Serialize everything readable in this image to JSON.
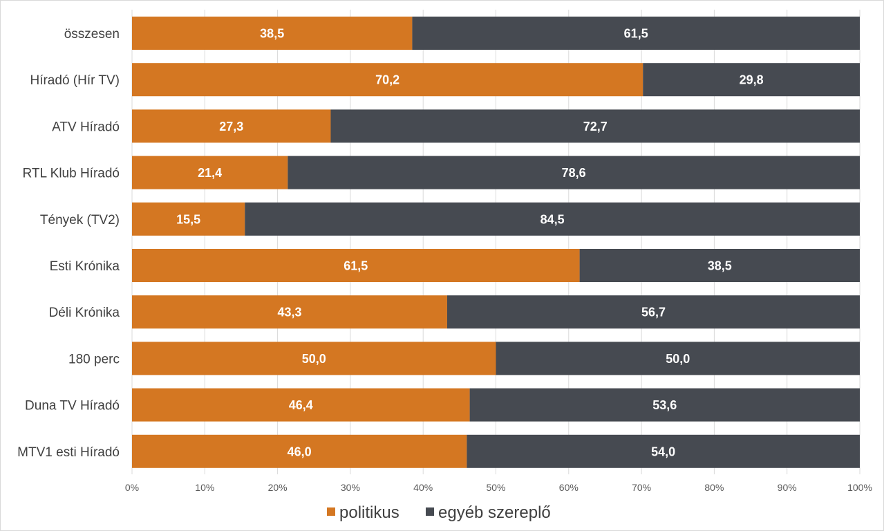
{
  "chart_data": {
    "type": "bar",
    "orientation": "horizontal",
    "stacked": "percent",
    "title": "",
    "xlabel": "",
    "ylabel": "",
    "xlim": [
      0,
      100
    ],
    "grid": true,
    "legend_position": "bottom",
    "categories": [
      "összesen",
      "Híradó (Hír TV)",
      "ATV Híradó",
      "RTL Klub Híradó",
      "Tények (TV2)",
      "Esti Krónika",
      "Déli Krónika",
      "180 perc",
      "Duna TV Híradó",
      "MTV1 esti Híradó"
    ],
    "x_ticks": [
      "0%",
      "10%",
      "20%",
      "30%",
      "40%",
      "50%",
      "60%",
      "70%",
      "80%",
      "90%",
      "100%"
    ],
    "series": [
      {
        "name": "politikus",
        "color": "#D47722",
        "values": [
          38.5,
          70.2,
          27.3,
          21.4,
          15.5,
          61.5,
          43.3,
          50.0,
          46.4,
          46.0
        ],
        "labels": [
          "38,5",
          "70,2",
          "27,3",
          "21,4",
          "15,5",
          "61,5",
          "43,3",
          "50,0",
          "46,4",
          "46,0"
        ]
      },
      {
        "name": "egyéb szereplő",
        "color": "#464A51",
        "values": [
          61.5,
          29.8,
          72.7,
          78.6,
          84.5,
          38.5,
          56.7,
          50.0,
          53.6,
          54.0
        ],
        "labels": [
          "61,5",
          "29,8",
          "72,7",
          "78,6",
          "84,5",
          "38,5",
          "56,7",
          "50,0",
          "53,6",
          "54,0"
        ]
      }
    ]
  }
}
